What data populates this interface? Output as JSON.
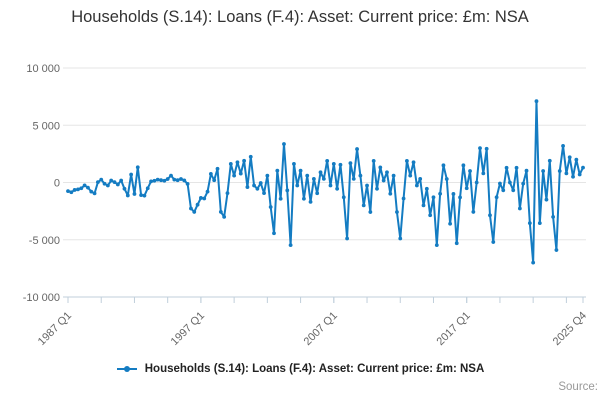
{
  "title": "Households (S.14): Loans (F.4): Asset: Current price: £m: NSA",
  "legend": {
    "label": "Households (S.14): Loans (F.4): Asset: Current price: £m: NSA"
  },
  "source_label": "Source:",
  "colors": {
    "line": "#147cc2",
    "grid": "#e5e5e5",
    "axis": "#c0cfdb",
    "title_text": "#333333",
    "tick_text": "#666666",
    "legend_text": "#222222",
    "source_text": "#999999"
  },
  "chart_data": {
    "type": "line",
    "title": "Households (S.14): Loans (F.4): Asset: Current price: £m: NSA",
    "unit": "£m",
    "frequency": "quarterly",
    "x_start": "1987 Q1",
    "x_end": "2025 Q4",
    "xlabel": "",
    "ylabel": "",
    "ylim": [
      -10000,
      10000
    ],
    "grid": "horizontal",
    "legend_position": "bottom",
    "marker": "dot",
    "y_ticks": [
      10000,
      5000,
      0,
      -5000,
      -10000
    ],
    "y_tick_labels": [
      "10 000",
      "5 000",
      "0",
      "-5 000",
      "-10 000"
    ],
    "x_major_tick_labels": [
      "1987 Q1",
      "1997 Q1",
      "2007 Q1",
      "2017 Q1",
      "2025 Q4"
    ],
    "x_major_tick_indices": [
      0,
      40,
      80,
      120,
      155
    ],
    "x_minor_tick_every": 10,
    "values": [
      -750,
      -850,
      -650,
      -600,
      -500,
      -250,
      -450,
      -800,
      -950,
      30,
      250,
      -110,
      -260,
      170,
      30,
      -170,
      170,
      -550,
      -1130,
      700,
      -1000,
      1330,
      -1100,
      -1150,
      -500,
      100,
      150,
      250,
      200,
      150,
      300,
      600,
      250,
      200,
      300,
      180,
      -120,
      -2270,
      -2570,
      -1940,
      -1350,
      -1400,
      -800,
      750,
      200,
      1200,
      -2570,
      -3000,
      -930,
      1630,
      600,
      1770,
      780,
      1900,
      -400,
      2250,
      -260,
      -550,
      -50,
      -930,
      600,
      -2140,
      -4430,
      1040,
      -1420,
      3360,
      -690,
      -5470,
      1630,
      -260,
      1040,
      -1420,
      600,
      -1690,
      320,
      -940,
      890,
      320,
      1890,
      -260,
      1630,
      -550,
      1550,
      -1290,
      -4890,
      1690,
      320,
      2920,
      600,
      -2000,
      -260,
      -2580,
      1890,
      -550,
      1320,
      170,
      890,
      -980,
      600,
      -2580,
      -4890,
      -1400,
      1890,
      600,
      1770,
      -260,
      320,
      -2000,
      -550,
      -2860,
      -1290,
      -5470,
      -980,
      1500,
      300,
      -3600,
      -1000,
      -5300,
      -1300,
      1500,
      -500,
      1000,
      -2570,
      0,
      3000,
      800,
      2950,
      -2860,
      -5200,
      -1290,
      -90,
      -680,
      1290,
      0,
      -680,
      1290,
      -2270,
      -100,
      1030,
      -3550,
      -7000,
      7100,
      -3550,
      1000,
      -1500,
      1900,
      -3000,
      -5900,
      1000,
      3200,
      800,
      2200,
      500,
      2000,
      700,
      1300
    ]
  }
}
